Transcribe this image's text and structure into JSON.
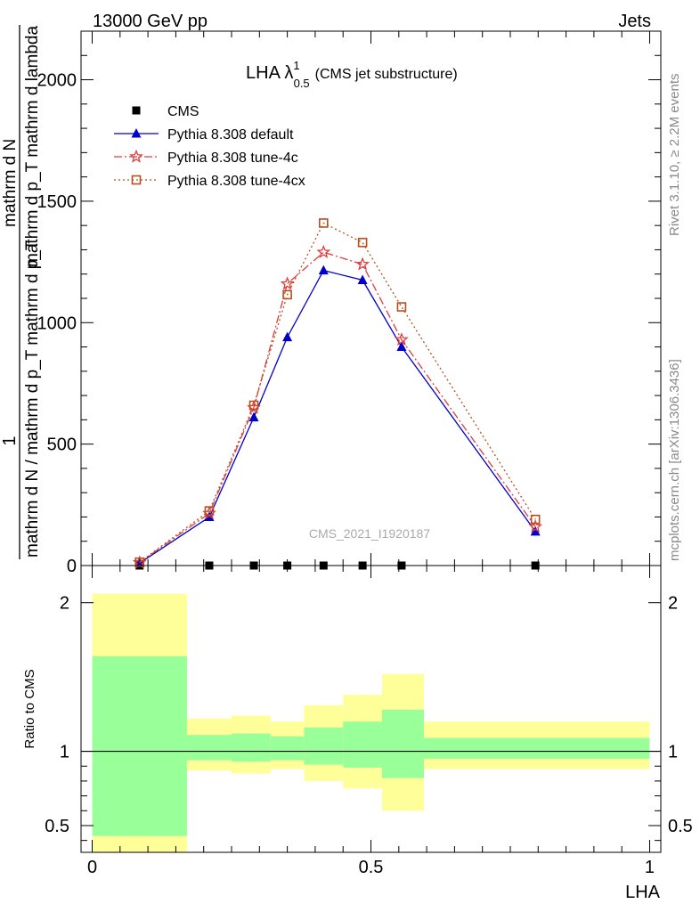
{
  "header": {
    "left": "13000 GeV pp",
    "right": "Jets"
  },
  "side_labels": {
    "rivet": "Rivet 3.1.10, ≥ 2.2M events",
    "mcplots": "mcplots.cern.ch [arXiv:1306.3436]"
  },
  "watermark": "CMS_2021_I1920187",
  "main_title": {
    "prefix": "LHA λ",
    "sup": "1",
    "sub": "0.5",
    "suffix": "(CMS jet substructure)"
  },
  "ylabel_main": {
    "one": "1",
    "denominator": "mathrm d N / mathrm d p_T mathrm d p_T",
    "numerator_sub": "mathrm d N",
    "numerator_tail": "mathrm d p_T mathrm d lambda"
  },
  "ylabel_ratio": "Ratio to CMS",
  "xlabel": "LHA",
  "chart_data": [
    {
      "type": "line",
      "xlim": [
        -0.02,
        1.02
      ],
      "ylim": [
        0,
        2200
      ],
      "x_ticks": [
        0,
        0.5,
        1
      ],
      "y_ticks": [
        0,
        500,
        1000,
        1500,
        2000
      ],
      "y_tick_labels": [
        "0",
        "500",
        "1000",
        "1500",
        "2000"
      ],
      "legend_position": "top-left",
      "series": [
        {
          "name": "CMS",
          "color": "#000000",
          "marker": "square",
          "x": [
            0.085,
            0.21,
            0.29,
            0.35,
            0.415,
            0.485,
            0.555,
            0.795
          ],
          "y": [
            0,
            0,
            0,
            0,
            0,
            0,
            0,
            0
          ]
        },
        {
          "name": "Pythia 8.308 default",
          "color": "#0000cc",
          "marker": "triangle",
          "dash": "",
          "x": [
            0.085,
            0.21,
            0.29,
            0.35,
            0.415,
            0.485,
            0.555,
            0.795
          ],
          "y": [
            10,
            200,
            610,
            940,
            1215,
            1175,
            900,
            140
          ]
        },
        {
          "name": "Pythia 8.308 tune-4c",
          "color": "#e03c3c",
          "marker": "star",
          "dash": "9,3,2,3",
          "x": [
            0.085,
            0.21,
            0.29,
            0.35,
            0.415,
            0.485,
            0.555,
            0.795
          ],
          "y": [
            12,
            215,
            650,
            1160,
            1290,
            1240,
            930,
            160
          ]
        },
        {
          "name": "Pythia 8.308 tune-4cx",
          "color": "#b5501e",
          "marker": "opensquare",
          "dash": "2,3",
          "x": [
            0.085,
            0.21,
            0.29,
            0.35,
            0.415,
            0.485,
            0.555,
            0.795
          ],
          "y": [
            14,
            225,
            660,
            1115,
            1410,
            1330,
            1065,
            190
          ]
        }
      ]
    },
    {
      "type": "area",
      "xlim": [
        -0.02,
        1.02
      ],
      "ylim": [
        0.32,
        2.25
      ],
      "y_ticks": [
        0.5,
        1,
        2
      ],
      "y_tick_labels": [
        "0.5",
        "1",
        "2"
      ],
      "x_ticks": [
        0,
        0.5,
        1
      ],
      "x_tick_labels": [
        "0",
        "0.5",
        "1"
      ],
      "reference_line": 1,
      "bins": [
        {
          "x0": 0.0,
          "x1": 0.17,
          "inner": [
            0.43,
            1.64
          ],
          "outer": [
            0.32,
            2.06
          ]
        },
        {
          "x0": 0.17,
          "x1": 0.25,
          "inner": [
            0.94,
            1.11
          ],
          "outer": [
            0.87,
            1.22
          ]
        },
        {
          "x0": 0.25,
          "x1": 0.32,
          "inner": [
            0.93,
            1.12
          ],
          "outer": [
            0.85,
            1.24
          ]
        },
        {
          "x0": 0.32,
          "x1": 0.38,
          "inner": [
            0.94,
            1.1
          ],
          "outer": [
            0.88,
            1.2
          ]
        },
        {
          "x0": 0.38,
          "x1": 0.45,
          "inner": [
            0.91,
            1.16
          ],
          "outer": [
            0.8,
            1.31
          ]
        },
        {
          "x0": 0.45,
          "x1": 0.52,
          "inner": [
            0.89,
            1.2
          ],
          "outer": [
            0.75,
            1.38
          ]
        },
        {
          "x0": 0.52,
          "x1": 0.595,
          "inner": [
            0.82,
            1.28
          ],
          "outer": [
            0.6,
            1.52
          ]
        },
        {
          "x0": 0.595,
          "x1": 1.0,
          "inner": [
            0.95,
            1.09
          ],
          "outer": [
            0.88,
            1.2
          ]
        }
      ],
      "colors": {
        "inner": "#99ff99",
        "outer": "#ffff99"
      }
    }
  ]
}
